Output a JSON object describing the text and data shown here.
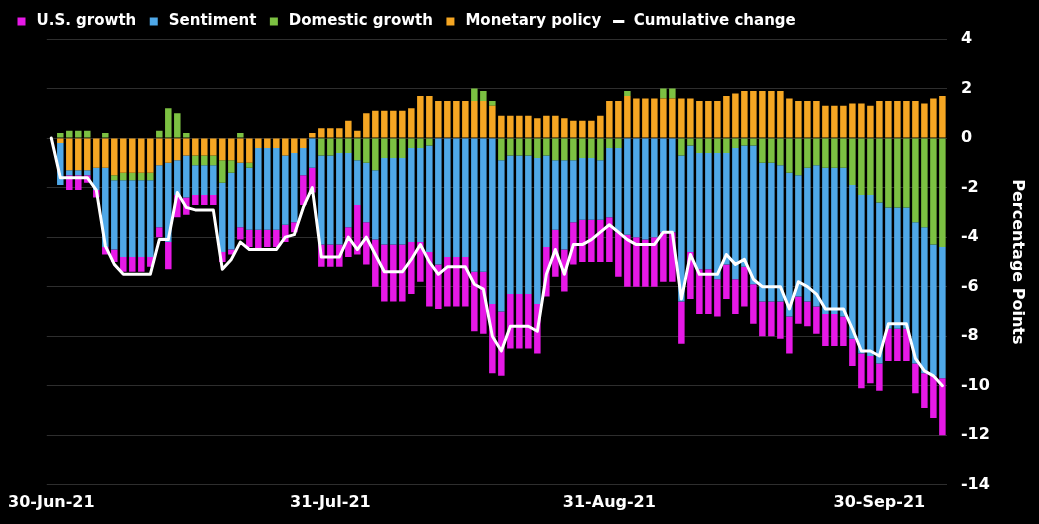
{
  "chart_data": {
    "type": "bar",
    "stacked": true,
    "ylabel": "Percentage Points",
    "ylim": [
      -14,
      4
    ],
    "yticks": [
      -14,
      -12,
      -10,
      -8,
      -6,
      -4,
      -2,
      0,
      2,
      4
    ],
    "grid": "y",
    "legend": "top left",
    "marker": "none",
    "categories": [
      "30-Jun-21",
      null,
      null,
      null,
      null,
      null,
      null,
      null,
      null,
      null,
      null,
      null,
      null,
      null,
      null,
      null,
      null,
      null,
      null,
      null,
      null,
      null,
      null,
      null,
      null,
      null,
      null,
      null,
      null,
      null,
      null,
      "31-Jul-21",
      null,
      null,
      null,
      null,
      null,
      null,
      null,
      null,
      null,
      null,
      null,
      null,
      null,
      null,
      null,
      null,
      null,
      null,
      null,
      null,
      null,
      null,
      null,
      null,
      null,
      null,
      null,
      null,
      null,
      null,
      "31-Aug-21",
      null,
      null,
      null,
      null,
      null,
      null,
      null,
      null,
      null,
      null,
      null,
      null,
      null,
      null,
      null,
      null,
      null,
      null,
      null,
      null,
      null,
      null,
      null,
      null,
      null,
      null,
      null,
      null,
      null,
      "30-Sep-21",
      null,
      null,
      null,
      null,
      null,
      null,
      null
    ],
    "series": [
      {
        "name": "Monetary policy",
        "color": "#f5a623",
        "values": [
          0,
          -0.2,
          -1.3,
          -1.3,
          -1.3,
          -1.2,
          -1.2,
          -1.5,
          -1.4,
          -1.4,
          -1.4,
          -1.4,
          -1.1,
          -1.0,
          -0.9,
          -0.7,
          -0.7,
          -0.7,
          -0.7,
          -0.9,
          -0.9,
          -1.0,
          -1.0,
          -0.4,
          -0.4,
          -0.4,
          -0.7,
          -0.6,
          -0.4,
          0.2,
          0.4,
          0.4,
          0.4,
          0.7,
          0.3,
          1.0,
          1.1,
          1.1,
          1.1,
          1.1,
          1.2,
          1.7,
          1.7,
          1.5,
          1.5,
          1.5,
          1.5,
          1.5,
          1.5,
          1.3,
          0.9,
          0.9,
          0.9,
          0.9,
          0.8,
          0.9,
          0.9,
          0.8,
          0.7,
          0.7,
          0.7,
          0.9,
          1.5,
          1.5,
          1.7,
          1.6,
          1.6,
          1.6,
          1.6,
          1.6,
          1.6,
          1.6,
          1.5,
          1.5,
          1.5,
          1.7,
          1.8,
          1.9,
          1.9,
          1.9,
          1.9,
          1.9,
          1.6,
          1.5,
          1.5,
          1.5,
          1.3,
          1.3,
          1.3,
          1.4,
          1.4,
          1.3,
          1.5,
          1.5,
          1.5,
          1.5,
          1.5,
          1.4,
          1.6,
          1.7
        ]
      },
      {
        "name": "Domestic growth",
        "color": "#7cc142",
        "values": [
          0,
          0.2,
          0.3,
          0.3,
          0.3,
          0,
          0.2,
          -0.2,
          -0.3,
          -0.3,
          -0.3,
          -0.3,
          0.3,
          1.2,
          1.0,
          0.2,
          -0.4,
          -0.4,
          -0.4,
          -0.9,
          -0.5,
          0.2,
          -0.2,
          0,
          0,
          0,
          0,
          0,
          0,
          0,
          -0.7,
          -0.7,
          -0.6,
          -0.6,
          -0.9,
          -1.0,
          -1.3,
          -0.8,
          -0.8,
          -0.8,
          -0.4,
          -0.4,
          -0.3,
          0,
          0,
          0,
          0,
          0.5,
          0.4,
          0.2,
          -0.9,
          -0.7,
          -0.7,
          -0.7,
          -0.8,
          -0.7,
          -0.9,
          -0.9,
          -0.9,
          -0.8,
          -0.8,
          -0.9,
          -0.4,
          -0.4,
          0.2,
          0,
          0,
          0,
          0.4,
          0.4,
          -0.7,
          -0.3,
          -0.6,
          -0.6,
          -0.6,
          -0.6,
          -0.4,
          -0.3,
          -0.3,
          -1.0,
          -1.0,
          -1.1,
          -1.4,
          -1.5,
          -1.2,
          -1.1,
          -1.2,
          -1.2,
          -1.2,
          -1.9,
          -2.3,
          -2.3,
          -2.6,
          -2.8,
          -2.8,
          -2.8,
          -3.4,
          -3.6,
          -4.3,
          -4.4
        ]
      },
      {
        "name": "Sentiment",
        "color": "#4fa8e8",
        "values": [
          0,
          -1.7,
          -0.2,
          -0.2,
          -0.2,
          -0.9,
          -3.2,
          -2.8,
          -3.1,
          -3.1,
          -3.1,
          -3.1,
          -2.5,
          -3.2,
          -1.4,
          -1.7,
          -1.2,
          -1.2,
          -1.2,
          -2.8,
          -3.1,
          -2.6,
          -2.5,
          -3.3,
          -3.3,
          -3.3,
          -2.8,
          -2.8,
          -1.1,
          -1.2,
          -3.6,
          -3.6,
          -3.7,
          -3.0,
          -1.8,
          -2.4,
          -2.8,
          -3.5,
          -3.5,
          -3.5,
          -3.8,
          -3.8,
          -4.3,
          -5.1,
          -4.8,
          -4.8,
          -4.8,
          -5.4,
          -5.4,
          -6.7,
          -6.1,
          -5.6,
          -5.6,
          -5.6,
          -5.9,
          -3.7,
          -2.8,
          -3.6,
          -2.5,
          -2.5,
          -2.5,
          -2.4,
          -2.8,
          -3.4,
          -3.9,
          -4.0,
          -4.1,
          -4.0,
          -3.8,
          -3.8,
          -5.9,
          -4.3,
          -4.7,
          -4.7,
          -5.1,
          -4.5,
          -5.3,
          -4.9,
          -5.6,
          -5.6,
          -5.6,
          -5.5,
          -5.8,
          -4.9,
          -5.4,
          -5.7,
          -5.9,
          -5.9,
          -6.0,
          -6.2,
          -6.4,
          -6.5,
          -6.5,
          -4.9,
          -4.9,
          -4.9,
          -5.7,
          -5.9,
          -5.3,
          -5.3
        ]
      },
      {
        "name": "U.S. growth",
        "color": "#e619e6",
        "values": [
          0,
          0,
          -0.6,
          -0.6,
          -0.3,
          -0.3,
          -0.3,
          -0.5,
          -0.6,
          -0.6,
          -0.6,
          -0.4,
          -0.4,
          -1.1,
          -0.9,
          -0.7,
          -0.4,
          -0.4,
          -0.4,
          -0.4,
          -0.2,
          -0.5,
          -0.7,
          -0.8,
          -0.7,
          -0.7,
          -0.7,
          -0.4,
          -1.2,
          -1.0,
          -0.9,
          -0.9,
          -0.9,
          -1.2,
          -2.0,
          -1.7,
          -1.9,
          -2.3,
          -2.3,
          -2.3,
          -2.1,
          -1.6,
          -2.2,
          -1.8,
          -2.0,
          -2.0,
          -2.0,
          -2.4,
          -2.5,
          -2.8,
          -2.6,
          -2.2,
          -2.2,
          -2.2,
          -2.0,
          -2.0,
          -1.9,
          -1.7,
          -1.7,
          -1.7,
          -1.7,
          -1.7,
          -1.8,
          -1.8,
          -2.1,
          -2.0,
          -1.9,
          -2.0,
          -2.0,
          -2.0,
          -1.7,
          -1.9,
          -1.8,
          -1.8,
          -1.5,
          -1.4,
          -1.4,
          -1.6,
          -1.6,
          -1.4,
          -1.4,
          -1.5,
          -1.5,
          -1.1,
          -1.0,
          -1.1,
          -1.3,
          -1.3,
          -1.2,
          -1.1,
          -1.4,
          -1.1,
          -1.1,
          -1.3,
          -1.3,
          -1.3,
          -1.2,
          -1.4,
          -1.7,
          -2.3
        ]
      },
      {
        "name": "Cumulative change",
        "type": "line",
        "color": "#ffffff",
        "values": [
          0,
          -1.6,
          -1.6,
          -1.6,
          -1.6,
          -2.1,
          -4.35,
          -5.1,
          -5.5,
          -5.5,
          -5.5,
          -5.5,
          -4.1,
          -4.1,
          -2.2,
          -2.8,
          -2.9,
          -2.9,
          -2.9,
          -5.3,
          -4.9,
          -4.2,
          -4.5,
          -4.5,
          -4.5,
          -4.5,
          -4.0,
          -3.9,
          -2.8,
          -2.0,
          -4.8,
          -4.8,
          -4.8,
          -4.0,
          -4.5,
          -4.0,
          -4.7,
          -5.4,
          -5.4,
          -5.4,
          -4.9,
          -4.3,
          -5.0,
          -5.5,
          -5.2,
          -5.2,
          -5.2,
          -5.9,
          -6.1,
          -8.0,
          -8.6,
          -7.6,
          -7.6,
          -7.6,
          -7.8,
          -5.5,
          -4.5,
          -5.5,
          -4.3,
          -4.3,
          -4.1,
          -3.8,
          -3.5,
          -3.8,
          -4.1,
          -4.3,
          -4.3,
          -4.3,
          -3.8,
          -3.8,
          -6.5,
          -4.7,
          -5.5,
          -5.5,
          -5.5,
          -4.7,
          -5.1,
          -4.9,
          -5.7,
          -6.0,
          -6.0,
          -6.0,
          -6.9,
          -5.8,
          -6.0,
          -6.3,
          -6.9,
          -6.9,
          -6.9,
          -7.7,
          -8.6,
          -8.6,
          -8.8,
          -7.5,
          -7.5,
          -7.5,
          -8.9,
          -9.4,
          -9.6,
          -10.0
        ]
      }
    ]
  }
}
